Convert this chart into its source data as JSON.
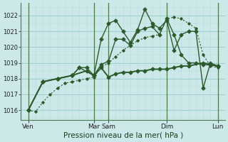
{
  "background_color": "#cce8e8",
  "grid_color_major": "#99cccc",
  "grid_color_minor": "#b8dcdc",
  "dark_green": "#2d5a2d",
  "xlabel": "Pression niveau de la mer( hPa )",
  "ylim": [
    1015.4,
    1022.8
  ],
  "yticks": [
    1016,
    1017,
    1018,
    1019,
    1020,
    1021,
    1022
  ],
  "xmin": 0,
  "xmax": 56,
  "day_tick_positions": [
    2,
    20,
    24,
    40,
    54
  ],
  "day_tick_labels": [
    "Ven",
    "Mar",
    "Sam",
    "Dim",
    "Lun"
  ],
  "line_dotted": {
    "x": [
      2,
      4,
      6,
      8,
      10,
      12,
      14,
      16,
      18,
      20,
      22,
      24,
      26,
      28,
      30,
      32,
      34,
      36,
      38,
      40,
      42,
      44,
      46,
      48,
      50,
      52,
      54
    ],
    "y": [
      1016.0,
      1015.9,
      1016.5,
      1017.0,
      1017.4,
      1017.7,
      1017.8,
      1017.9,
      1018.0,
      1018.1,
      1018.7,
      1019.0,
      1019.4,
      1019.8,
      1020.1,
      1020.4,
      1020.6,
      1020.7,
      1020.8,
      1021.8,
      1021.9,
      1021.8,
      1021.5,
      1021.2,
      1019.5,
      1018.8,
      1018.7
    ]
  },
  "line_flat": {
    "x": [
      2,
      6,
      10,
      14,
      18,
      20,
      22,
      24,
      26,
      28,
      30,
      32,
      34,
      36,
      38,
      40,
      42,
      44,
      46,
      50,
      54
    ],
    "y": [
      1016.0,
      1017.8,
      1018.0,
      1018.2,
      1018.5,
      1018.2,
      1018.7,
      1018.1,
      1018.3,
      1018.4,
      1018.4,
      1018.5,
      1018.5,
      1018.6,
      1018.6,
      1018.6,
      1018.7,
      1018.8,
      1018.8,
      1019.0,
      1018.8
    ]
  },
  "line_mid": {
    "x": [
      2,
      6,
      10,
      14,
      16,
      18,
      20,
      22,
      24,
      26,
      28,
      30,
      32,
      34,
      36,
      38,
      40,
      42,
      44,
      46,
      48,
      50,
      54
    ],
    "y": [
      1016.0,
      1017.8,
      1018.0,
      1018.2,
      1018.7,
      1018.7,
      1018.2,
      1018.9,
      1019.1,
      1020.5,
      1020.5,
      1020.1,
      1021.0,
      1021.2,
      1021.3,
      1020.8,
      1021.8,
      1020.8,
      1019.5,
      1019.0,
      1019.0,
      1018.9,
      1018.8
    ]
  },
  "line_peaks": {
    "x": [
      2,
      6,
      10,
      14,
      16,
      20,
      22,
      24,
      26,
      28,
      30,
      32,
      34,
      36,
      38,
      40,
      42,
      44,
      46,
      48,
      50,
      52,
      54
    ],
    "y": [
      1016.0,
      1017.8,
      1018.0,
      1018.2,
      1018.7,
      1018.2,
      1020.5,
      1021.5,
      1021.7,
      1021.0,
      1020.3,
      1021.1,
      1022.4,
      1021.5,
      1021.2,
      1021.7,
      1019.8,
      1020.8,
      1021.0,
      1021.0,
      1017.4,
      1019.0,
      1018.8
    ]
  }
}
